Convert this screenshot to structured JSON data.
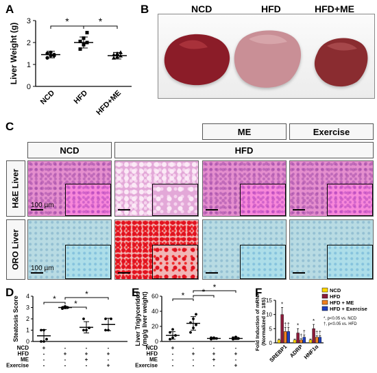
{
  "panels": {
    "a": "A",
    "b": "B",
    "c": "C",
    "d": "D",
    "e": "E",
    "f": "F"
  },
  "panel_b": {
    "labels": [
      "NCD",
      "HFD",
      "HFD+ME"
    ]
  },
  "panel_c": {
    "group_headers": {
      "ncd": "NCD",
      "hfd": "HFD",
      "me": "ME",
      "exercise": "Exercise"
    },
    "row_labels": {
      "he": "H&E Liver",
      "oro": "ORO Liver"
    },
    "scale_label": "100 µm"
  },
  "matrix_rows": [
    "NCD",
    "HFD",
    "ME",
    "Exercise"
  ],
  "matrix_values": [
    [
      "+",
      "-",
      "-",
      "-"
    ],
    [
      "-",
      "+",
      "+",
      "+"
    ],
    [
      "-",
      "-",
      "+",
      "-"
    ],
    [
      "-",
      "-",
      "-",
      "+"
    ]
  ],
  "chart_data": [
    {
      "type": "scatter",
      "panel": "A",
      "ylabel": "Liver Weight (g)",
      "categories": [
        "NCD",
        "HFD",
        "HFD+ME"
      ],
      "ylim": [
        0,
        3
      ],
      "yticks": [
        0,
        1,
        2,
        3
      ],
      "means": [
        1.45,
        2.0,
        1.4
      ],
      "sd": [
        0.15,
        0.25,
        0.15
      ],
      "points": [
        [
          1.3,
          1.4,
          1.45,
          1.5,
          1.55,
          1.4
        ],
        [
          1.7,
          1.9,
          2.0,
          2.05,
          2.2,
          2.45
        ],
        [
          1.3,
          1.35,
          1.4,
          1.45,
          1.5,
          1.55
        ]
      ],
      "significance": [
        "*",
        "*"
      ]
    },
    {
      "type": "scatter",
      "panel": "D",
      "ylabel": "Steatosis Score",
      "ylim": [
        0,
        4
      ],
      "yticks": [
        0,
        1,
        2,
        3,
        4
      ],
      "means": [
        0.5,
        3.0,
        1.25,
        1.5
      ],
      "sd": [
        0.55,
        0.1,
        0.5,
        0.55
      ],
      "points": [
        [
          0,
          0,
          0.2,
          1,
          1
        ],
        [
          2.9,
          3,
          3,
          3,
          3.1
        ],
        [
          1,
          1,
          1.2,
          2
        ],
        [
          1,
          1,
          2,
          2
        ]
      ],
      "significance": [
        "*",
        "*",
        "*"
      ]
    },
    {
      "type": "scatter",
      "panel": "E",
      "ylabel": "Liver Triglycerides (mg/g liver weight)",
      "ylim": [
        0,
        60
      ],
      "yticks": [
        0,
        20,
        40,
        60
      ],
      "means": [
        8,
        24,
        4,
        4
      ],
      "sd": [
        5,
        9,
        1,
        1.5
      ],
      "points": [
        [
          3,
          5,
          8,
          12,
          16
        ],
        [
          12,
          18,
          22,
          25,
          30,
          36
        ],
        [
          3,
          4,
          4,
          5,
          5
        ],
        [
          3,
          4,
          4,
          5,
          6
        ]
      ],
      "significance": [
        "*",
        "*",
        "*"
      ]
    },
    {
      "type": "bar",
      "panel": "F",
      "ylabel": "Fold Induction of mRNA (Normalized to 18S)",
      "categories": [
        "SREBP1",
        "ADRP",
        "HNF1α"
      ],
      "ylim": [
        0,
        15
      ],
      "yticks": [
        0,
        5,
        10,
        15
      ],
      "series": [
        {
          "name": "NCD",
          "color": "#ffd600",
          "values": [
            1,
            1,
            1
          ],
          "err": [
            0.3,
            0.3,
            0.3
          ]
        },
        {
          "name": "HFD",
          "color": "#8b1a3a",
          "values": [
            10,
            3.5,
            5
          ],
          "err": [
            2.5,
            1.5,
            1.5
          ]
        },
        {
          "name": "HFD + ME",
          "color": "#f08020",
          "values": [
            4,
            1,
            2
          ],
          "err": [
            1.5,
            0.5,
            0.5
          ]
        },
        {
          "name": "HFD + Exercise",
          "color": "#1f3fbf",
          "values": [
            4,
            2,
            2
          ],
          "err": [
            1.5,
            0.8,
            0.6
          ]
        }
      ],
      "marks": {
        "hfd": "*",
        "treat": "†"
      },
      "legend_note1": "*, p<0.05 vs. NCD",
      "legend_note2": "†, p<0.05 vs. HFD"
    }
  ]
}
